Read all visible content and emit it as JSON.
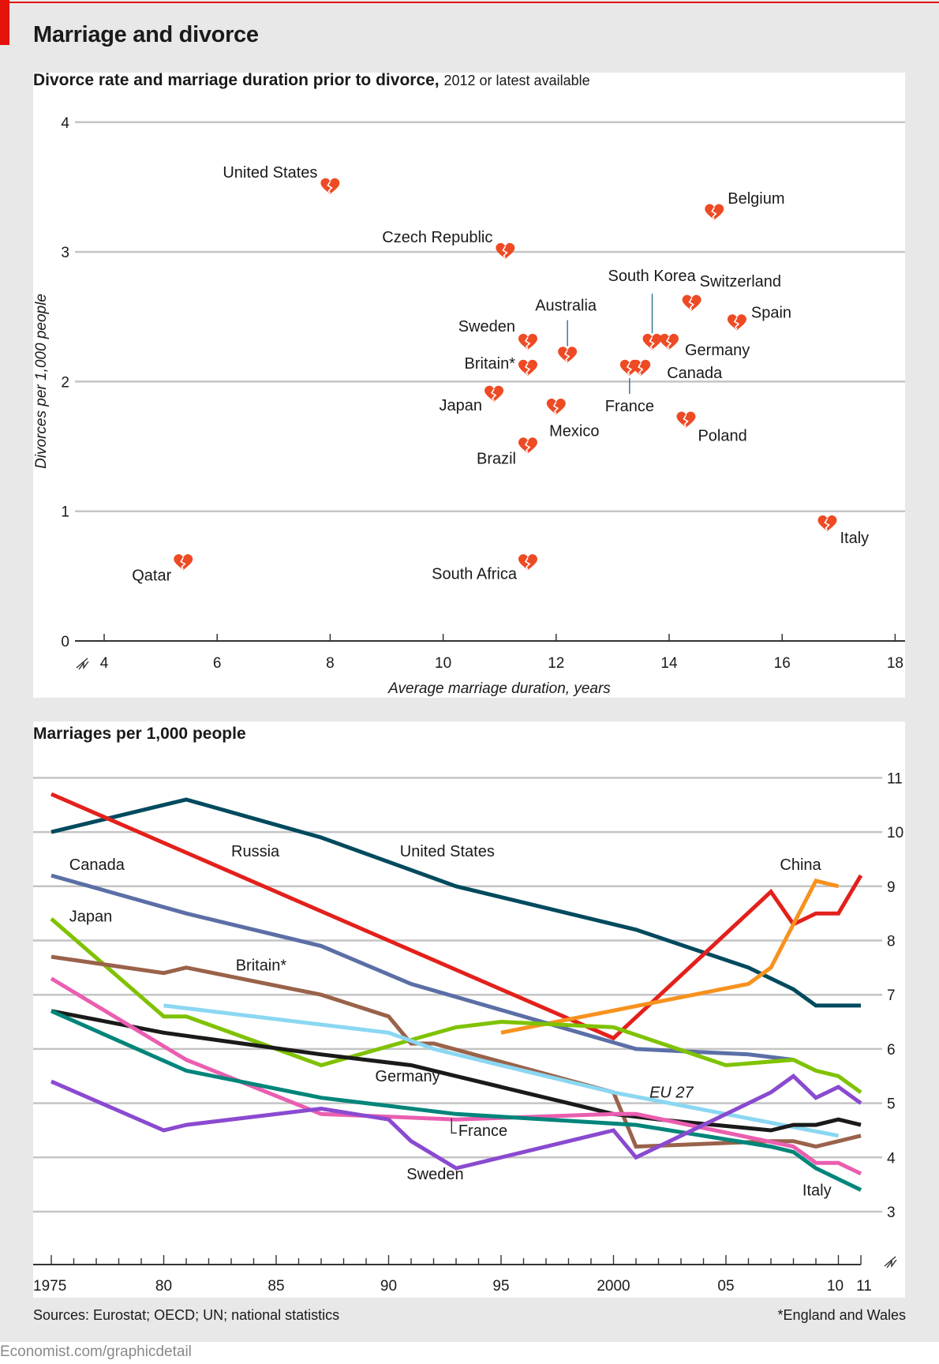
{
  "header": {
    "title": "Marriage and divorce"
  },
  "footer": {
    "source": "Sources: Eurostat; OECD; UN; national statistics",
    "footnote": "*England and Wales",
    "credit": "Economist.com/graphicdetail"
  },
  "colors": {
    "accent_red": "#e3120b",
    "heart": "#ee4a24",
    "grid": "#c4c4c4"
  },
  "chart_data": [
    {
      "type": "scatter",
      "title": "Divorce rate and marriage duration prior to divorce,",
      "subtitle": "2012 or latest available",
      "xlabel": "Average marriage duration, years",
      "ylabel": "Divorces per 1,000 people",
      "xlim": [
        4,
        18
      ],
      "ylim": [
        0,
        4
      ],
      "xticks": [
        4,
        6,
        8,
        10,
        12,
        14,
        16,
        18
      ],
      "yticks": [
        0,
        1,
        2,
        3,
        4
      ],
      "grid": true,
      "marker": "broken-heart",
      "points": [
        {
          "label": "United States",
          "x": 8.0,
          "y": 3.5
        },
        {
          "label": "Czech Republic",
          "x": 11.1,
          "y": 3.0
        },
        {
          "label": "Belgium",
          "x": 14.8,
          "y": 3.3
        },
        {
          "label": "South Korea",
          "x": 13.7,
          "y": 2.3
        },
        {
          "label": "Switzerland",
          "x": 14.4,
          "y": 2.6
        },
        {
          "label": "Spain",
          "x": 15.2,
          "y": 2.45
        },
        {
          "label": "Germany",
          "x": 14.0,
          "y": 2.3
        },
        {
          "label": "Sweden",
          "x": 11.5,
          "y": 2.3
        },
        {
          "label": "Australia",
          "x": 12.2,
          "y": 2.2
        },
        {
          "label": "Britain*",
          "x": 11.5,
          "y": 2.1
        },
        {
          "label": "France",
          "x": 13.3,
          "y": 2.1
        },
        {
          "label": "Canada",
          "x": 13.5,
          "y": 2.1
        },
        {
          "label": "Japan",
          "x": 10.9,
          "y": 1.9
        },
        {
          "label": "Mexico",
          "x": 12.0,
          "y": 1.8
        },
        {
          "label": "Poland",
          "x": 14.3,
          "y": 1.7
        },
        {
          "label": "Brazil",
          "x": 11.5,
          "y": 1.5
        },
        {
          "label": "Italy",
          "x": 16.8,
          "y": 0.9
        },
        {
          "label": "Qatar",
          "x": 5.4,
          "y": 0.6
        },
        {
          "label": "South Africa",
          "x": 11.5,
          "y": 0.6
        }
      ]
    },
    {
      "type": "line",
      "title": "Marriages per 1,000 people",
      "xlim": [
        1975,
        2011
      ],
      "ylim": [
        3,
        11
      ],
      "xtick_labels": [
        "1975",
        "80",
        "85",
        "90",
        "95",
        "2000",
        "05",
        "10",
        "11"
      ],
      "xtick_years": [
        1975,
        1980,
        1985,
        1990,
        1995,
        2000,
        2005,
        2010,
        2011
      ],
      "yticks": [
        3,
        4,
        5,
        6,
        7,
        8,
        9,
        10,
        11
      ],
      "yaxis_side": "right",
      "grid": true,
      "series": [
        {
          "name": "United States",
          "color": "#004a5e",
          "points": [
            [
              1975,
              10.0
            ],
            [
              1981,
              10.6
            ],
            [
              1987,
              9.9
            ],
            [
              1993,
              9.0
            ],
            [
              2001,
              8.2
            ],
            [
              2006,
              7.5
            ],
            [
              2007,
              7.3
            ],
            [
              2008,
              7.1
            ],
            [
              2009,
              6.8
            ],
            [
              2010,
              6.8
            ],
            [
              2011,
              6.8
            ]
          ]
        },
        {
          "name": "Russia",
          "color": "#e3201b",
          "points": [
            [
              1975,
              10.7
            ],
            [
              2000,
              6.2
            ],
            [
              2007,
              8.9
            ],
            [
              2008,
              8.3
            ],
            [
              2009,
              8.5
            ],
            [
              2010,
              8.5
            ],
            [
              2011,
              9.2
            ]
          ]
        },
        {
          "name": "China",
          "color": "#f7921e",
          "points": [
            [
              1995,
              6.3
            ],
            [
              2006,
              7.2
            ],
            [
              2007,
              7.5
            ],
            [
              2008,
              8.3
            ],
            [
              2009,
              9.1
            ],
            [
              2010,
              9.0
            ]
          ]
        },
        {
          "name": "Canada",
          "color": "#5b6fa6",
          "points": [
            [
              1975,
              9.2
            ],
            [
              1981,
              8.5
            ],
            [
              1987,
              7.9
            ],
            [
              1991,
              7.2
            ],
            [
              2001,
              6.0
            ],
            [
              2006,
              5.9
            ],
            [
              2008,
              5.8
            ]
          ]
        },
        {
          "name": "Japan",
          "color": "#7fc200",
          "points": [
            [
              1975,
              8.4
            ],
            [
              1980,
              6.6
            ],
            [
              1981,
              6.6
            ],
            [
              1987,
              5.7
            ],
            [
              1993,
              6.4
            ],
            [
              1995,
              6.5
            ],
            [
              2000,
              6.4
            ],
            [
              2005,
              5.7
            ],
            [
              2008,
              5.8
            ],
            [
              2009,
              5.6
            ],
            [
              2010,
              5.5
            ],
            [
              2011,
              5.2
            ]
          ]
        },
        {
          "name": "Britain*",
          "color": "#9a624a",
          "points": [
            [
              1975,
              7.7
            ],
            [
              1980,
              7.4
            ],
            [
              1981,
              7.5
            ],
            [
              1987,
              7.0
            ],
            [
              1990,
              6.6
            ],
            [
              1991,
              6.1
            ],
            [
              1992,
              6.1
            ],
            [
              2000,
              5.2
            ],
            [
              2001,
              4.2
            ],
            [
              2007,
              4.3
            ],
            [
              2008,
              4.3
            ],
            [
              2009,
              4.2
            ],
            [
              2011,
              4.4
            ]
          ]
        },
        {
          "name": "EU 27",
          "color": "#8ad7f2",
          "points": [
            [
              1980,
              6.8
            ],
            [
              1990,
              6.3
            ],
            [
              1992,
              6.0
            ],
            [
              2000,
              5.2
            ],
            [
              2010,
              4.4
            ]
          ]
        },
        {
          "name": "Germany",
          "color": "#1a1a1a",
          "points": [
            [
              1975,
              6.7
            ],
            [
              1980,
              6.3
            ],
            [
              1987,
              5.9
            ],
            [
              1991,
              5.7
            ],
            [
              1993,
              5.5
            ],
            [
              2000,
              4.8
            ],
            [
              2002,
              4.7
            ],
            [
              2007,
              4.5
            ],
            [
              2008,
              4.6
            ],
            [
              2009,
              4.6
            ],
            [
              2010,
              4.7
            ],
            [
              2011,
              4.6
            ]
          ]
        },
        {
          "name": "France",
          "color": "#ea5eb0",
          "points": [
            [
              1975,
              7.3
            ],
            [
              1981,
              5.8
            ],
            [
              1987,
              4.8
            ],
            [
              1993,
              4.7
            ],
            [
              2000,
              4.8
            ],
            [
              2001,
              4.8
            ],
            [
              2008,
              4.2
            ],
            [
              2009,
              3.9
            ],
            [
              2010,
              3.9
            ],
            [
              2011,
              3.7
            ]
          ]
        },
        {
          "name": "Italy",
          "color": "#00857a",
          "points": [
            [
              1975,
              6.7
            ],
            [
              1981,
              5.6
            ],
            [
              1987,
              5.1
            ],
            [
              1993,
              4.8
            ],
            [
              2001,
              4.6
            ],
            [
              2007,
              4.2
            ],
            [
              2008,
              4.1
            ],
            [
              2009,
              3.8
            ],
            [
              2011,
              3.4
            ]
          ]
        },
        {
          "name": "Sweden",
          "color": "#8a4ad0",
          "points": [
            [
              1975,
              5.4
            ],
            [
              1980,
              4.5
            ],
            [
              1981,
              4.6
            ],
            [
              1987,
              4.9
            ],
            [
              1990,
              4.7
            ],
            [
              1991,
              4.3
            ],
            [
              1993,
              3.8
            ],
            [
              2000,
              4.5
            ],
            [
              2001,
              4.0
            ],
            [
              2007,
              5.2
            ],
            [
              2008,
              5.5
            ],
            [
              2009,
              5.1
            ],
            [
              2010,
              5.3
            ],
            [
              2011,
              5.0
            ]
          ]
        }
      ],
      "labels": [
        {
          "text": "Russia",
          "x": 1983.0,
          "y": 9.55
        },
        {
          "text": "United States",
          "x": 1990.5,
          "y": 9.55
        },
        {
          "text": "Canada",
          "x": 1975.8,
          "y": 9.3
        },
        {
          "text": "China",
          "x": 2007.4,
          "y": 9.3
        },
        {
          "text": "Japan",
          "x": 1975.8,
          "y": 8.35
        },
        {
          "text": "Britain*",
          "x": 1983.2,
          "y": 7.45
        },
        {
          "text": "Germany",
          "x": 1989.4,
          "y": 5.4
        },
        {
          "text": "EU 27",
          "x": 2001.6,
          "y": 5.1,
          "italic": true
        },
        {
          "text": "France",
          "x": 1993.1,
          "y": 4.4
        },
        {
          "text": "Sweden",
          "x": 1990.8,
          "y": 3.6
        },
        {
          "text": "Italy",
          "x": 2008.4,
          "y": 3.3
        }
      ]
    }
  ]
}
